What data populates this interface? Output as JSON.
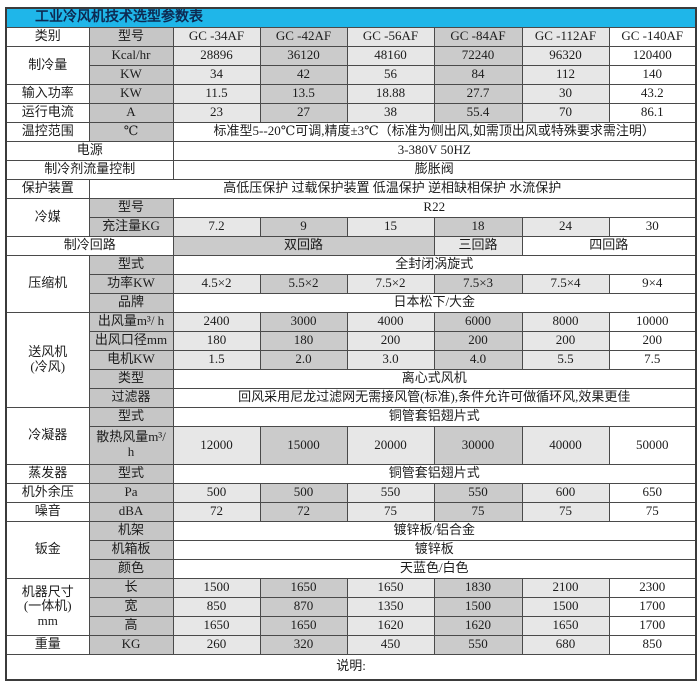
{
  "title": {
    "text": "工业冷风机技术选型参数表"
  },
  "colors": {
    "title_bg": "#1fb6e9",
    "title_text": "#0d2a52",
    "shade_light": "#e7e7e7",
    "shade_mid": "#cbcbcb",
    "label_gray": "#c6c6c6",
    "border": "#4a4a4a",
    "border_dark": "#3b3b3b"
  },
  "models": [
    "GC -34AF",
    "GC -42AF",
    "GC -56AF",
    "GC -84AF",
    "GC -112AF",
    "GC -140AF"
  ],
  "table": {
    "rows": [
      {
        "cells": [
          {
            "t": "类别",
            "c": "w",
            "n": "col-header-category"
          },
          {
            "t": "型号",
            "c": "l",
            "n": "col-header-model"
          },
          {
            "t": "GC -34AF",
            "c": "a",
            "n": "col-header-model-gc34af"
          },
          {
            "t": "GC -42AF",
            "c": "b",
            "n": "col-header-model-gc42af"
          },
          {
            "t": "GC -56AF",
            "c": "a",
            "n": "col-header-model-gc56af"
          },
          {
            "t": "GC -84AF",
            "c": "b",
            "n": "col-header-model-gc84af"
          },
          {
            "t": "GC -112AF",
            "c": "a",
            "n": "col-header-model-gc112af"
          },
          {
            "t": "GC -140AF",
            "c": "w",
            "n": "col-header-model-gc140af"
          }
        ]
      },
      {
        "cells": [
          {
            "t": "制冷量",
            "rs": 2,
            "c": "w",
            "n": "row-label-cooling-capacity"
          },
          {
            "t": "Kcal/hr",
            "c": "l",
            "n": "unit-label"
          },
          {
            "t": "28896",
            "c": "a"
          },
          {
            "t": "36120",
            "c": "b"
          },
          {
            "t": "48160",
            "c": "a"
          },
          {
            "t": "72240",
            "c": "b"
          },
          {
            "t": "96320",
            "c": "a"
          },
          {
            "t": "120400",
            "c": "w"
          }
        ]
      },
      {
        "cells": [
          {
            "t": "KW",
            "c": "l",
            "n": "unit-label"
          },
          {
            "t": "34",
            "c": "a"
          },
          {
            "t": "42",
            "c": "b"
          },
          {
            "t": "56",
            "c": "a"
          },
          {
            "t": "84",
            "c": "b"
          },
          {
            "t": "112",
            "c": "a"
          },
          {
            "t": "140",
            "c": "w"
          }
        ]
      },
      {
        "cells": [
          {
            "t": "输入功率",
            "c": "w",
            "n": "row-label-input-power"
          },
          {
            "t": "KW",
            "c": "l",
            "n": "unit-label"
          },
          {
            "t": "11.5",
            "c": "a"
          },
          {
            "t": "13.5",
            "c": "b"
          },
          {
            "t": "18.88",
            "c": "a"
          },
          {
            "t": "27.7",
            "c": "b"
          },
          {
            "t": "30",
            "c": "a"
          },
          {
            "t": "43.2",
            "c": "w"
          }
        ]
      },
      {
        "cells": [
          {
            "t": "运行电流",
            "c": "w",
            "n": "row-label-running-current"
          },
          {
            "t": "A",
            "c": "l",
            "n": "unit-label"
          },
          {
            "t": "23",
            "c": "a"
          },
          {
            "t": "27",
            "c": "b"
          },
          {
            "t": "38",
            "c": "a"
          },
          {
            "t": "55.4",
            "c": "b"
          },
          {
            "t": "70",
            "c": "a"
          },
          {
            "t": "86.1",
            "c": "w"
          }
        ]
      },
      {
        "cells": [
          {
            "t": "温控范围",
            "c": "w",
            "n": "row-label-temp-range"
          },
          {
            "t": "℃",
            "c": "l",
            "n": "unit-label"
          },
          {
            "t": "标准型5--20℃可调,精度±3℃（标准为侧出风,如需顶出风或特殊要求需注明）",
            "cs": 6,
            "c": "w",
            "n": "temp-range-note"
          }
        ]
      },
      {
        "cells": [
          {
            "t": "电源",
            "cs": 2,
            "c": "w",
            "n": "row-label-power-supply"
          },
          {
            "t": "3-380V 50HZ",
            "cs": 6,
            "c": "w",
            "n": "power-supply-value"
          }
        ]
      },
      {
        "cells": [
          {
            "t": "制冷剂流量控制",
            "cs": 2,
            "c": "w",
            "n": "row-label-refrigerant-flow-control"
          },
          {
            "t": "膨胀阀",
            "cs": 6,
            "c": "w",
            "n": "refrigerant-flow-control-value"
          }
        ]
      },
      {
        "cells": [
          {
            "t": "保护装置",
            "c": "w",
            "n": "row-label-protection-devices"
          },
          {
            "t": "高低压保护 过载保护装置 低温保护 逆相缺相保护 水流保护",
            "cs": 7,
            "c": "w",
            "n": "protection-devices-value"
          }
        ]
      },
      {
        "cells": [
          {
            "t": "冷媒",
            "rs": 2,
            "c": "w",
            "n": "row-label-refrigerant"
          },
          {
            "t": "型号",
            "c": "l",
            "n": "sub-label-type"
          },
          {
            "t": "R22",
            "cs": 6,
            "c": "w",
            "n": "refrigerant-type-value"
          }
        ]
      },
      {
        "cells": [
          {
            "t": "充注量KG",
            "c": "l",
            "n": "sub-label-charge-kg"
          },
          {
            "t": "7.2",
            "c": "a"
          },
          {
            "t": "9",
            "c": "b"
          },
          {
            "t": "15",
            "c": "a"
          },
          {
            "t": "18",
            "c": "b"
          },
          {
            "t": "24",
            "c": "a"
          },
          {
            "t": "30",
            "c": "w"
          }
        ]
      },
      {
        "cells": [
          {
            "t": "制冷回路",
            "cs": 2,
            "c": "w",
            "n": "row-label-cooling-circuit"
          },
          {
            "t": "双回路",
            "cs": 3,
            "c": "b",
            "n": "circuit-dual"
          },
          {
            "t": "三回路",
            "c": "a",
            "n": "circuit-triple"
          },
          {
            "t": "四回路",
            "cs": 2,
            "c": "w",
            "n": "circuit-quad"
          }
        ]
      },
      {
        "cells": [
          {
            "t": "压缩机",
            "rs": 3,
            "c": "w",
            "n": "row-label-compressor"
          },
          {
            "t": "型式",
            "c": "l",
            "n": "sub-label-style"
          },
          {
            "t": "全封闭涡旋式",
            "cs": 6,
            "c": "w",
            "n": "compressor-style-value"
          }
        ]
      },
      {
        "cells": [
          {
            "t": "功率KW",
            "c": "l",
            "n": "sub-label-power-kw"
          },
          {
            "t": "4.5×2",
            "c": "a"
          },
          {
            "t": "5.5×2",
            "c": "b"
          },
          {
            "t": "7.5×2",
            "c": "a"
          },
          {
            "t": "7.5×3",
            "c": "b"
          },
          {
            "t": "7.5×4",
            "c": "a"
          },
          {
            "t": "9×4",
            "c": "w"
          }
        ]
      },
      {
        "cells": [
          {
            "t": "品牌",
            "c": "l",
            "n": "sub-label-brand"
          },
          {
            "t": "日本松下/大金",
            "cs": 6,
            "c": "w",
            "n": "compressor-brand-value"
          }
        ]
      },
      {
        "cells": [
          {
            "t": "送风机\n(冷风)",
            "rs": 5,
            "c": "w",
            "n": "row-label-blower"
          },
          {
            "t": "出风量m³/ h",
            "c": "l",
            "n": "sub-label-air-volume"
          },
          {
            "t": "2400",
            "c": "a"
          },
          {
            "t": "3000",
            "c": "b"
          },
          {
            "t": "4000",
            "c": "a"
          },
          {
            "t": "6000",
            "c": "b"
          },
          {
            "t": "8000",
            "c": "a"
          },
          {
            "t": "10000",
            "c": "w"
          }
        ]
      },
      {
        "cells": [
          {
            "t": "出风口径mm",
            "c": "l",
            "n": "sub-label-outlet-diameter"
          },
          {
            "t": "180",
            "c": "a"
          },
          {
            "t": "180",
            "c": "b"
          },
          {
            "t": "200",
            "c": "a"
          },
          {
            "t": "200",
            "c": "b"
          },
          {
            "t": "200",
            "c": "a"
          },
          {
            "t": "200",
            "c": "w"
          }
        ]
      },
      {
        "cells": [
          {
            "t": "电机KW",
            "c": "l",
            "n": "sub-label-motor-kw"
          },
          {
            "t": "1.5",
            "c": "a"
          },
          {
            "t": "2.0",
            "c": "b"
          },
          {
            "t": "3.0",
            "c": "a"
          },
          {
            "t": "4.0",
            "c": "b"
          },
          {
            "t": "5.5",
            "c": "a"
          },
          {
            "t": "7.5",
            "c": "w"
          }
        ]
      },
      {
        "cells": [
          {
            "t": "类型",
            "c": "l",
            "n": "sub-label-type"
          },
          {
            "t": "离心式风机",
            "cs": 6,
            "c": "w",
            "n": "blower-type-value"
          }
        ]
      },
      {
        "cells": [
          {
            "t": "过滤器",
            "c": "l",
            "n": "sub-label-filter"
          },
          {
            "t": "回风采用尼龙过滤网无需接风管(标准),条件允许可做循环风,效果更佳",
            "cs": 6,
            "c": "w",
            "n": "filter-value"
          }
        ]
      },
      {
        "cells": [
          {
            "t": "冷凝器",
            "rs": 2,
            "c": "w",
            "n": "row-label-condenser"
          },
          {
            "t": "型式",
            "c": "l",
            "n": "sub-label-style"
          },
          {
            "t": "铜管套铝翅片式",
            "cs": 6,
            "c": "w",
            "n": "condenser-style-value"
          }
        ]
      },
      {
        "h": 38,
        "cells": [
          {
            "t": "散热风量m³/\nh",
            "c": "l",
            "n": "sub-label-heat-dissipation-volume"
          },
          {
            "t": "12000",
            "c": "a"
          },
          {
            "t": "15000",
            "c": "b"
          },
          {
            "t": "20000",
            "c": "a"
          },
          {
            "t": "30000",
            "c": "b"
          },
          {
            "t": "40000",
            "c": "a"
          },
          {
            "t": "50000",
            "c": "w"
          }
        ]
      },
      {
        "cells": [
          {
            "t": "蒸发器",
            "c": "w",
            "n": "row-label-evaporator"
          },
          {
            "t": "型式",
            "c": "l",
            "n": "sub-label-style"
          },
          {
            "t": "铜管套铝翅片式",
            "cs": 6,
            "c": "w",
            "n": "evaporator-style-value"
          }
        ]
      },
      {
        "cells": [
          {
            "t": "机外余压",
            "c": "w",
            "n": "row-label-external-static-pressure"
          },
          {
            "t": "Pa",
            "c": "l",
            "n": "unit-label"
          },
          {
            "t": "500",
            "c": "a"
          },
          {
            "t": "500",
            "c": "b"
          },
          {
            "t": "550",
            "c": "a"
          },
          {
            "t": "550",
            "c": "b"
          },
          {
            "t": "600",
            "c": "a"
          },
          {
            "t": "650",
            "c": "w"
          }
        ]
      },
      {
        "cells": [
          {
            "t": "噪音",
            "c": "w",
            "n": "row-label-noise"
          },
          {
            "t": "dBA",
            "c": "l",
            "n": "unit-label"
          },
          {
            "t": "72",
            "c": "a"
          },
          {
            "t": "72",
            "c": "b"
          },
          {
            "t": "75",
            "c": "a"
          },
          {
            "t": "75",
            "c": "b"
          },
          {
            "t": "75",
            "c": "a"
          },
          {
            "t": "75",
            "c": "w"
          }
        ]
      },
      {
        "cells": [
          {
            "t": "钣金",
            "rs": 3,
            "c": "w",
            "n": "row-label-sheet-metal"
          },
          {
            "t": "机架",
            "c": "l",
            "n": "sub-label-frame"
          },
          {
            "t": "镀锌板/铝合金",
            "cs": 6,
            "c": "w",
            "n": "frame-value"
          }
        ]
      },
      {
        "cells": [
          {
            "t": "机箱板",
            "c": "l",
            "n": "sub-label-cabinet-panel"
          },
          {
            "t": "镀锌板",
            "cs": 6,
            "c": "w",
            "n": "cabinet-panel-value"
          }
        ]
      },
      {
        "cells": [
          {
            "t": "颜色",
            "c": "l",
            "n": "sub-label-color"
          },
          {
            "t": "天蓝色/白色",
            "cs": 6,
            "c": "w",
            "n": "color-value"
          }
        ]
      },
      {
        "cells": [
          {
            "t": "机器尺寸\n(一体机)\nmm",
            "rs": 3,
            "c": "w",
            "n": "row-label-machine-dimensions"
          },
          {
            "t": "长",
            "c": "l",
            "n": "sub-label-length"
          },
          {
            "t": "1500",
            "c": "a"
          },
          {
            "t": "1650",
            "c": "b"
          },
          {
            "t": "1650",
            "c": "a"
          },
          {
            "t": "1830",
            "c": "b"
          },
          {
            "t": "2100",
            "c": "a"
          },
          {
            "t": "2300",
            "c": "w"
          }
        ]
      },
      {
        "cells": [
          {
            "t": "宽",
            "c": "l",
            "n": "sub-label-width"
          },
          {
            "t": "850",
            "c": "a"
          },
          {
            "t": "870",
            "c": "b"
          },
          {
            "t": "1350",
            "c": "a"
          },
          {
            "t": "1500",
            "c": "b"
          },
          {
            "t": "1500",
            "c": "a"
          },
          {
            "t": "1700",
            "c": "w"
          }
        ]
      },
      {
        "cells": [
          {
            "t": "高",
            "c": "l",
            "n": "sub-label-height"
          },
          {
            "t": "1650",
            "c": "a"
          },
          {
            "t": "1650",
            "c": "b"
          },
          {
            "t": "1620",
            "c": "a"
          },
          {
            "t": "1620",
            "c": "b"
          },
          {
            "t": "1650",
            "c": "a"
          },
          {
            "t": "1700",
            "c": "w"
          }
        ]
      },
      {
        "cells": [
          {
            "t": "重量",
            "c": "w",
            "n": "row-label-weight"
          },
          {
            "t": "KG",
            "c": "l",
            "n": "unit-label"
          },
          {
            "t": "260",
            "c": "a"
          },
          {
            "t": "320",
            "c": "b"
          },
          {
            "t": "450",
            "c": "a"
          },
          {
            "t": "550",
            "c": "b"
          },
          {
            "t": "680",
            "c": "a"
          },
          {
            "t": "850",
            "c": "w"
          }
        ]
      },
      {
        "h": 26,
        "cells": [
          {
            "t": "说明:",
            "cs": 8,
            "c": "w",
            "al": true,
            "n": "remarks-note"
          }
        ]
      }
    ]
  }
}
